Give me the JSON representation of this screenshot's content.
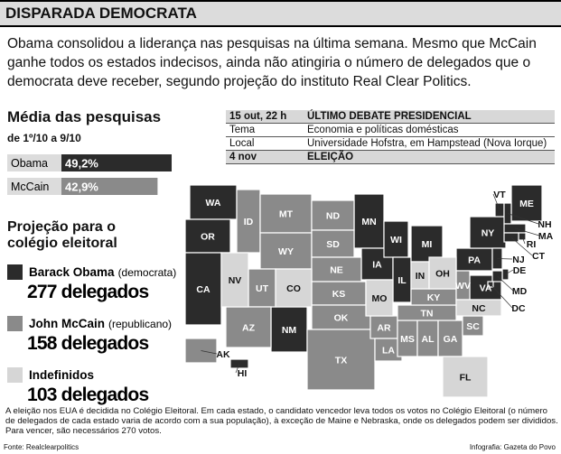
{
  "header": {
    "title": "DISPARADA DEMOCRATA"
  },
  "intro": "Obama consolidou a liderança nas pesquisas na última semana. Mesmo que McCain ganhe todos os estados indecisos, ainda não atingiria o número de delegados que o democrata deve receber, segundo projeção do instituto Real Clear Politics.",
  "poll": {
    "title": "Média das pesquisas",
    "subtitle": "de 1º/10 a 9/10",
    "bars": [
      {
        "name": "Obama",
        "value": 49.2,
        "value_label": "49,2%",
        "color": "#2b2b2b"
      },
      {
        "name": "McCain",
        "value": 42.9,
        "value_label": "42,9%",
        "color": "#8a8a8a"
      }
    ]
  },
  "schedule": {
    "rows": [
      [
        "15 out, 22 h",
        "ÚLTIMO DEBATE PRESIDENCIAL"
      ],
      [
        "Tema",
        "Economia e políticas domésticas"
      ],
      [
        "Local",
        "Universidade Hofstra, em Hampstead (Nova Iorque)"
      ],
      [
        "4 nov",
        "ELEIÇÃO"
      ]
    ]
  },
  "projection": {
    "title": "Projeção para o colégio eleitoral",
    "items": [
      {
        "name": "Barack Obama",
        "note": "(democrata)",
        "delegates": "277 delegados",
        "color": "#2b2b2b",
        "states": [
          "WA",
          "OR",
          "CA",
          "NM",
          "MN",
          "IA",
          "WI",
          "IL",
          "MI",
          "PA",
          "NY",
          "VA",
          "ME",
          "VT",
          "NH",
          "MA",
          "RI",
          "CT",
          "NJ",
          "DE",
          "MD",
          "DC",
          "HI"
        ]
      },
      {
        "name": "John McCain",
        "note": "(republicano)",
        "delegates": "158 delegados",
        "color": "#8a8a8a",
        "states": [
          "ID",
          "MT",
          "WY",
          "UT",
          "AZ",
          "ND",
          "SD",
          "NE",
          "KS",
          "OK",
          "TX",
          "AR",
          "LA",
          "MS",
          "AL",
          "GA",
          "SC",
          "TN",
          "KY",
          "WV",
          "AK"
        ]
      },
      {
        "name": "Indefinidos",
        "delegates": "103 delegados",
        "color": "#d6d6d6",
        "states": [
          "NV",
          "CO",
          "MO",
          "IN",
          "OH",
          "NC",
          "FL"
        ]
      }
    ]
  },
  "footnote": "A eleição nos EUA é decidida no Colégio Eleitoral. Em cada estado, o candidato vencedor leva todos os votos no Colégio Eleitoral (o número de delegados de cada estado varia de acordo com a sua população), à exceção de Maine e Nebraska, onde os delegados podem ser divididos. Para vencer, são necessários 270 votos.",
  "source": "Fonte: Realclearpolitics",
  "credit": "Infografia: Gazeta do Povo"
}
